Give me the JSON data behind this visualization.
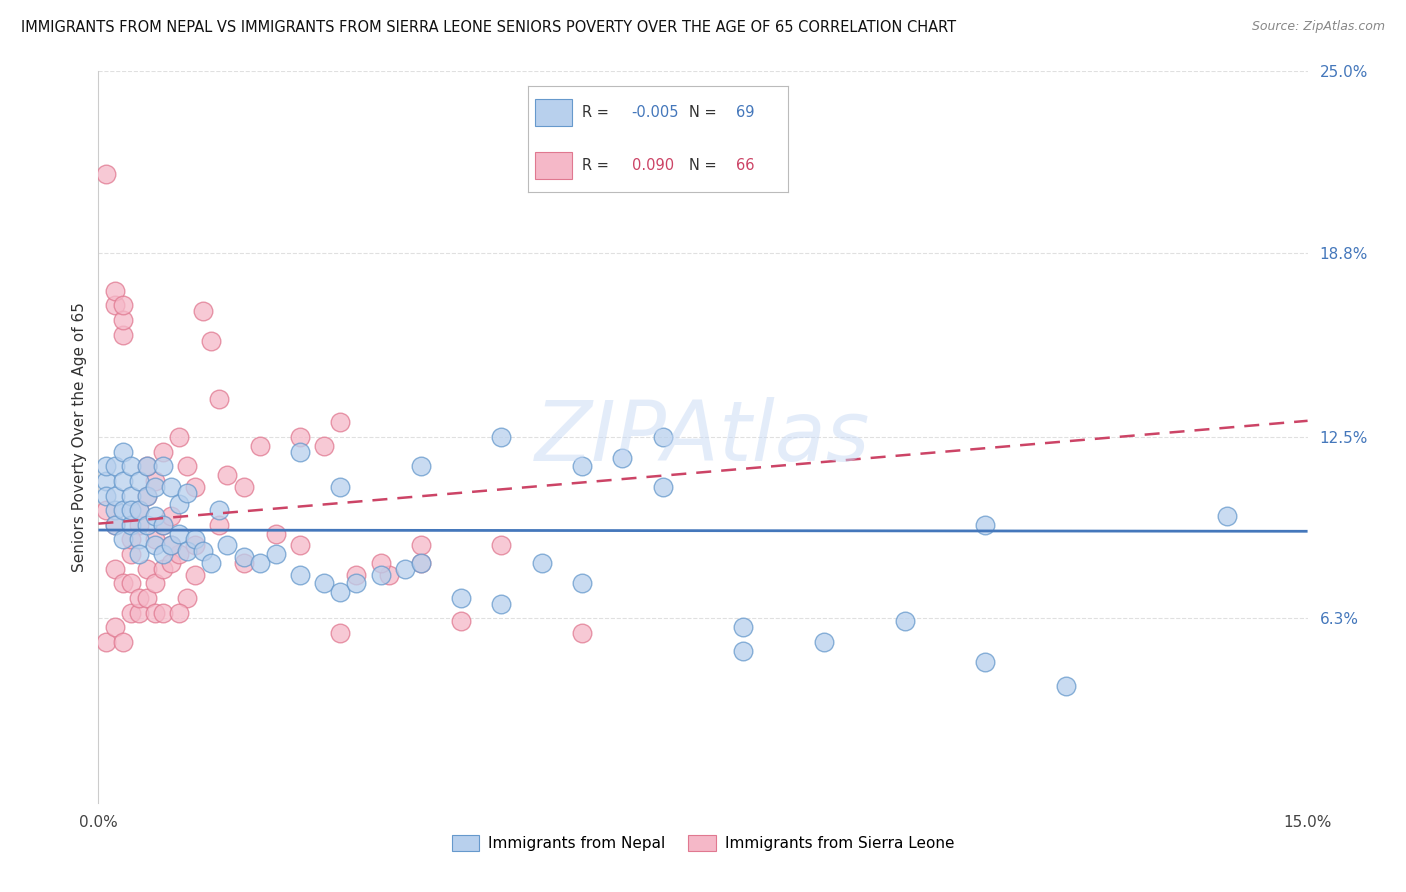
{
  "title": "IMMIGRANTS FROM NEPAL VS IMMIGRANTS FROM SIERRA LEONE SENIORS POVERTY OVER THE AGE OF 65 CORRELATION CHART",
  "source": "Source: ZipAtlas.com",
  "ylabel": "Seniors Poverty Over the Age of 65",
  "xlim": [
    0.0,
    0.15
  ],
  "ylim": [
    0.0,
    0.25
  ],
  "right_ytick_vals": [
    0.063,
    0.125,
    0.188,
    0.25
  ],
  "right_yticklabels": [
    "6.3%",
    "12.5%",
    "18.8%",
    "25.0%"
  ],
  "grid_color": "#e0e0e0",
  "background_color": "#ffffff",
  "watermark": "ZIPAtlas",
  "watermark_color": "#c8daf5",
  "nepal_fill": "#b8d0ed",
  "nepal_edge": "#6699cc",
  "sl_fill": "#f5b8c8",
  "sl_edge": "#e07890",
  "nepal_R": -0.005,
  "nepal_N": 69,
  "sl_R": 0.09,
  "sl_N": 66,
  "nepal_line": "#4477bb",
  "sl_line": "#cc4466",
  "nepal_x": [
    0.001,
    0.001,
    0.001,
    0.002,
    0.002,
    0.002,
    0.002,
    0.003,
    0.003,
    0.003,
    0.003,
    0.004,
    0.004,
    0.004,
    0.004,
    0.005,
    0.005,
    0.005,
    0.005,
    0.006,
    0.006,
    0.006,
    0.007,
    0.007,
    0.007,
    0.008,
    0.008,
    0.008,
    0.009,
    0.009,
    0.01,
    0.01,
    0.011,
    0.011,
    0.012,
    0.013,
    0.014,
    0.015,
    0.016,
    0.018,
    0.02,
    0.022,
    0.025,
    0.028,
    0.03,
    0.032,
    0.035,
    0.038,
    0.04,
    0.045,
    0.05,
    0.055,
    0.06,
    0.065,
    0.07,
    0.08,
    0.09,
    0.1,
    0.11,
    0.12,
    0.025,
    0.03,
    0.04,
    0.05,
    0.06,
    0.07,
    0.08,
    0.11,
    0.14
  ],
  "nepal_y": [
    0.11,
    0.105,
    0.115,
    0.1,
    0.095,
    0.105,
    0.115,
    0.09,
    0.1,
    0.11,
    0.12,
    0.095,
    0.105,
    0.115,
    0.1,
    0.09,
    0.1,
    0.11,
    0.085,
    0.095,
    0.105,
    0.115,
    0.088,
    0.098,
    0.108,
    0.085,
    0.095,
    0.115,
    0.088,
    0.108,
    0.092,
    0.102,
    0.086,
    0.106,
    0.09,
    0.086,
    0.082,
    0.1,
    0.088,
    0.084,
    0.082,
    0.085,
    0.078,
    0.075,
    0.072,
    0.075,
    0.078,
    0.08,
    0.082,
    0.07,
    0.068,
    0.082,
    0.075,
    0.118,
    0.108,
    0.06,
    0.055,
    0.062,
    0.048,
    0.04,
    0.12,
    0.108,
    0.115,
    0.125,
    0.115,
    0.125,
    0.052,
    0.095,
    0.098
  ],
  "sl_x": [
    0.001,
    0.001,
    0.001,
    0.002,
    0.002,
    0.002,
    0.002,
    0.003,
    0.003,
    0.003,
    0.003,
    0.004,
    0.004,
    0.004,
    0.005,
    0.005,
    0.005,
    0.006,
    0.006,
    0.006,
    0.007,
    0.007,
    0.007,
    0.008,
    0.008,
    0.008,
    0.009,
    0.009,
    0.01,
    0.01,
    0.011,
    0.011,
    0.012,
    0.012,
    0.013,
    0.014,
    0.015,
    0.016,
    0.018,
    0.02,
    0.022,
    0.025,
    0.028,
    0.03,
    0.032,
    0.036,
    0.04,
    0.045,
    0.05,
    0.06,
    0.002,
    0.003,
    0.004,
    0.005,
    0.006,
    0.007,
    0.008,
    0.009,
    0.01,
    0.012,
    0.015,
    0.018,
    0.025,
    0.03,
    0.035,
    0.04
  ],
  "sl_y": [
    0.215,
    0.1,
    0.055,
    0.17,
    0.06,
    0.08,
    0.095,
    0.16,
    0.165,
    0.055,
    0.075,
    0.085,
    0.075,
    0.065,
    0.095,
    0.065,
    0.07,
    0.105,
    0.07,
    0.08,
    0.09,
    0.075,
    0.11,
    0.12,
    0.08,
    0.095,
    0.098,
    0.082,
    0.125,
    0.085,
    0.115,
    0.07,
    0.108,
    0.078,
    0.168,
    0.158,
    0.138,
    0.112,
    0.108,
    0.122,
    0.092,
    0.088,
    0.122,
    0.13,
    0.078,
    0.078,
    0.082,
    0.062,
    0.088,
    0.058,
    0.175,
    0.17,
    0.09,
    0.1,
    0.115,
    0.065,
    0.065,
    0.088,
    0.065,
    0.088,
    0.095,
    0.082,
    0.125,
    0.058,
    0.082,
    0.088
  ]
}
